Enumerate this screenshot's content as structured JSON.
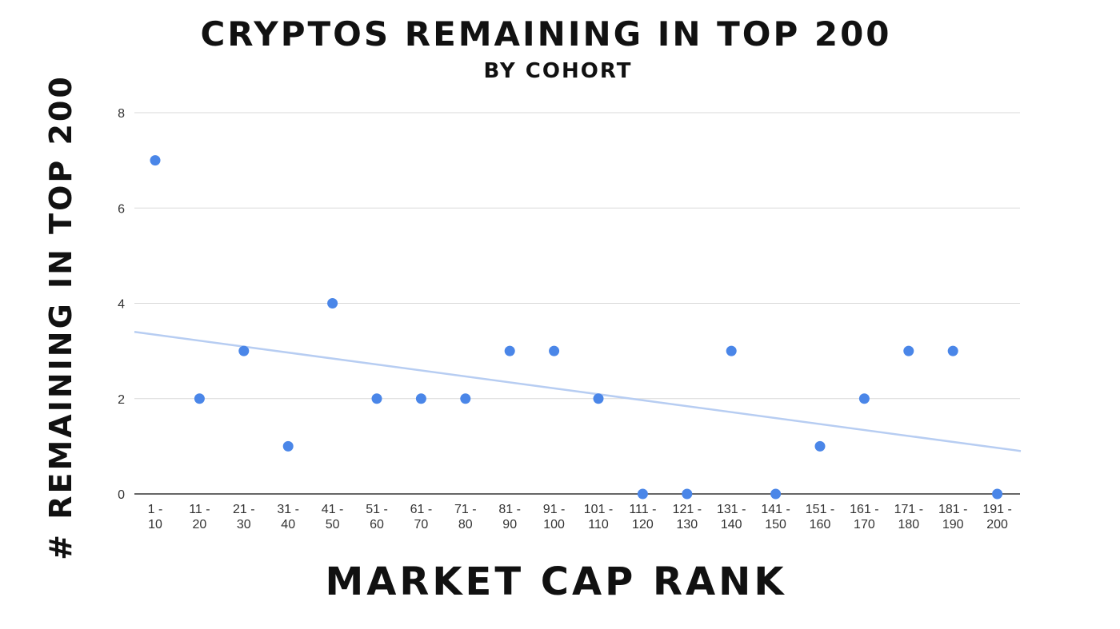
{
  "chart_data": {
    "type": "scatter",
    "title": "CRYPTOS REMAINING IN TOP 200",
    "subtitle": "BY COHORT",
    "xlabel": "MARKET CAP RANK",
    "ylabel": "# REMAINING IN TOP 200",
    "categories": [
      [
        "1 -",
        "10"
      ],
      [
        "11 -",
        "20"
      ],
      [
        "21 -",
        "30"
      ],
      [
        "31 -",
        "40"
      ],
      [
        "41 -",
        "50"
      ],
      [
        "51 -",
        "60"
      ],
      [
        "61 -",
        "70"
      ],
      [
        "71 -",
        "80"
      ],
      [
        "81 -",
        "90"
      ],
      [
        "91 -",
        "100"
      ],
      [
        "101 -",
        "110"
      ],
      [
        "111 -",
        "120"
      ],
      [
        "121 -",
        "130"
      ],
      [
        "131 -",
        "140"
      ],
      [
        "141 -",
        "150"
      ],
      [
        "151 -",
        "160"
      ],
      [
        "161 -",
        "170"
      ],
      [
        "171 -",
        "180"
      ],
      [
        "181 -",
        "190"
      ],
      [
        "191 -",
        "200"
      ]
    ],
    "series": [
      {
        "values": [
          7,
          2,
          3,
          1,
          4,
          2,
          2,
          2,
          3,
          3,
          2,
          0,
          0,
          3,
          0,
          1,
          2,
          3,
          3,
          0
        ]
      }
    ],
    "trendline": {
      "start": 3.4,
      "end": 0.9
    },
    "ylim": [
      0,
      8
    ],
    "yticks": [
      0,
      2,
      4,
      6,
      8
    ],
    "grid": true,
    "colors": {
      "points": "#4a86e8",
      "trendline": "#b7cdf2",
      "gridline": "#d9d9d9",
      "axis": "#333333"
    }
  }
}
